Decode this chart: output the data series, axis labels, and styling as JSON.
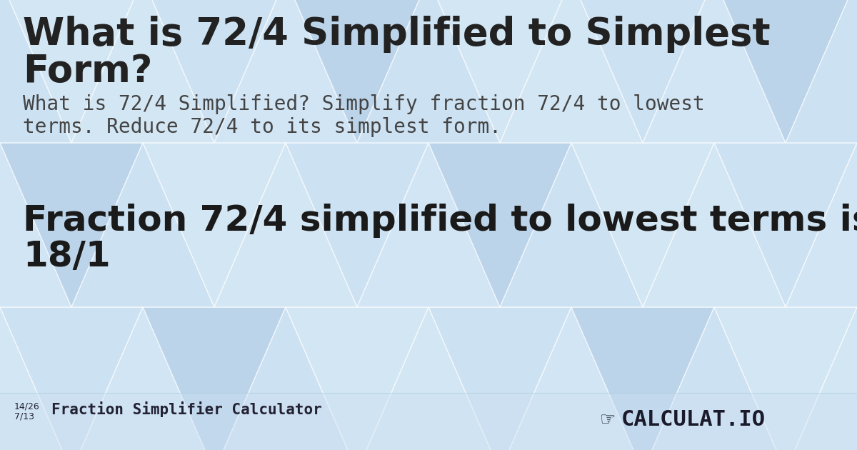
{
  "title_line1": "What is 72/4 Simplified to Simplest",
  "title_line2": "Form?",
  "description_line1": "What is 72/4 Simplified? Simplify fraction 72/4 to lowest",
  "description_line2": "terms. Reduce 72/4 to its simplest form.",
  "result_line1": "Fraction 72/4 simplified to lowest terms is",
  "result_line2": "18/1",
  "footer_frac1": "14/26",
  "footer_frac2": "7/13",
  "footer_text": "Fraction Simplifier Calculator",
  "bg_color": "#c2d9ee",
  "title_color": "#222222",
  "desc_color": "#444444",
  "result_color": "#1a1a1a",
  "footer_color": "#222233",
  "title_fontsize": 38,
  "desc_fontsize": 20,
  "result_fontsize": 36,
  "footer_fontsize": 15
}
